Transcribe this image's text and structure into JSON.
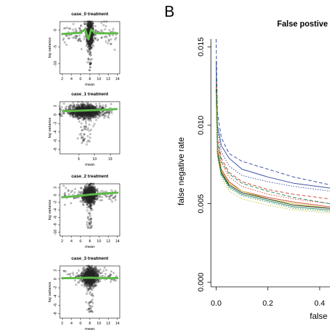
{
  "panel_b_letter": "B",
  "chart_data": [
    {
      "type": "scatter",
      "title": "case_0 treatment",
      "xlabel": "mean",
      "ylabel": "log variance",
      "xticks": [
        2,
        4,
        6,
        8,
        10,
        12,
        14
      ],
      "yticks": [
        0,
        -5,
        -10
      ],
      "xlim": [
        1.5,
        14.5
      ],
      "ylim": [
        -13,
        2.5
      ],
      "trend": {
        "x": [
          2,
          4,
          6,
          7,
          7.7,
          8.3,
          9,
          10,
          12,
          14
        ],
        "y": [
          -1.2,
          -1.0,
          -0.8,
          0.2,
          -2.8,
          0.2,
          -0.8,
          -1.0,
          -1.0,
          -1.0
        ]
      },
      "cloud": {
        "center_x": 8.0,
        "center_y": -1.2,
        "spread_x": 0.35,
        "spread_y": 3.0,
        "n_points": 900,
        "low_tail": -12
      },
      "trend_color": "#5dbb46",
      "point_color": "#222222"
    },
    {
      "type": "scatter",
      "title": "case_1 treatment",
      "xlabel": "mean",
      "ylabel": "log variance",
      "xticks": [
        5,
        10,
        15
      ],
      "yticks": [
        2,
        0,
        -2,
        -4,
        -6,
        -8
      ],
      "xlim": [
        -1,
        18
      ],
      "ylim": [
        -9,
        3
      ],
      "trend": {
        "x": [
          0,
          4,
          8,
          12,
          17
        ],
        "y": [
          0.8,
          0.9,
          1.0,
          1.1,
          1.3
        ]
      },
      "cloud": {
        "center_x": 7.0,
        "center_y": 0.8,
        "spread_x": 2.3,
        "spread_y": 1.2,
        "n_points": 1300,
        "low_tail": -7
      },
      "trend_color": "#5dbb46",
      "point_color": "#222222"
    },
    {
      "type": "scatter",
      "title": "case_2 treatment",
      "xlabel": "mean",
      "ylabel": "log variance",
      "xticks": [
        2,
        4,
        6,
        8,
        10,
        12,
        14
      ],
      "yticks": [
        2,
        0,
        -2,
        -4,
        -6,
        -8,
        -10
      ],
      "xlim": [
        1.5,
        14.5
      ],
      "ylim": [
        -11,
        3
      ],
      "trend": {
        "x": [
          2,
          4,
          6,
          8,
          10,
          12,
          14
        ],
        "y": [
          -0.6,
          -0.4,
          -0.2,
          0.1,
          0.3,
          0.5,
          0.6
        ]
      },
      "cloud": {
        "center_x": 8.0,
        "center_y": 0.0,
        "spread_x": 0.7,
        "spread_y": 1.8,
        "n_points": 1100,
        "low_tail": -9
      },
      "trend_color": "#5dbb46",
      "point_color": "#222222"
    },
    {
      "type": "scatter",
      "title": "case_3 treatment",
      "xlabel": "mean",
      "ylabel": "log variance",
      "xticks": [
        2,
        4,
        6,
        8,
        10,
        12,
        14
      ],
      "yticks": [
        2,
        0,
        -2,
        -4,
        -6,
        -8
      ],
      "xlim": [
        1.5,
        14.5
      ],
      "ylim": [
        -9,
        3
      ],
      "trend": {
        "x": [
          2,
          4,
          6,
          8,
          10,
          12,
          14
        ],
        "y": [
          0.2,
          0.2,
          0.25,
          0.3,
          0.25,
          0.2,
          0.2
        ]
      },
      "cloud": {
        "center_x": 8.0,
        "center_y": 0.5,
        "spread_x": 0.8,
        "spread_y": 1.6,
        "n_points": 1100,
        "low_tail": -8
      },
      "trend_color": "#5dbb46",
      "point_color": "#222222"
    },
    {
      "type": "line",
      "title": "False postive",
      "xlabel": "false",
      "ylabel": "false negative rate",
      "xticks": [
        "0.0",
        "0.2",
        "0.4"
      ],
      "yticks": [
        "0.000",
        "0.005",
        "0.010",
        "0.015"
      ],
      "xlim": [
        -0.02,
        0.44
      ],
      "ylim": [
        -0.0003,
        0.0155
      ],
      "series": [
        {
          "color": "#3a4fa0",
          "style": "dashed",
          "x": [
            0.0,
            0.005,
            0.02,
            0.05,
            0.1,
            0.2,
            0.3,
            0.44
          ],
          "y": [
            0.0155,
            0.0108,
            0.0092,
            0.0082,
            0.0077,
            0.0072,
            0.0067,
            0.0062
          ]
        },
        {
          "color": "#3a4fa0",
          "style": "solid",
          "x": [
            0.0,
            0.005,
            0.02,
            0.05,
            0.1,
            0.2,
            0.3,
            0.44
          ],
          "y": [
            0.0141,
            0.01,
            0.0087,
            0.0079,
            0.0072,
            0.0067,
            0.0063,
            0.006
          ]
        },
        {
          "color": "#3a4fa0",
          "style": "dotted",
          "x": [
            0.0,
            0.005,
            0.02,
            0.05,
            0.1,
            0.2,
            0.3,
            0.44
          ],
          "y": [
            0.0136,
            0.0097,
            0.0083,
            0.0074,
            0.0068,
            0.0064,
            0.0061,
            0.0058
          ]
        },
        {
          "color": "#d04a3c",
          "style": "dashed",
          "x": [
            0.0,
            0.005,
            0.02,
            0.05,
            0.1,
            0.2,
            0.3,
            0.44
          ],
          "y": [
            0.0129,
            0.0092,
            0.0079,
            0.007,
            0.0064,
            0.0059,
            0.0056,
            0.0053
          ]
        },
        {
          "color": "#d04a3c",
          "style": "dotted",
          "x": [
            0.0,
            0.005,
            0.02,
            0.05,
            0.1,
            0.2,
            0.3,
            0.44
          ],
          "y": [
            0.0126,
            0.0089,
            0.0076,
            0.0067,
            0.0061,
            0.0056,
            0.0053,
            0.005
          ]
        },
        {
          "color": "#2e8b57",
          "style": "dashed",
          "x": [
            0.0,
            0.005,
            0.02,
            0.05,
            0.1,
            0.2,
            0.3,
            0.44
          ],
          "y": [
            0.013,
            0.009,
            0.0077,
            0.0069,
            0.0063,
            0.0058,
            0.0054,
            0.005
          ]
        },
        {
          "color": "#d04a3c",
          "style": "solid",
          "x": [
            0.0,
            0.005,
            0.02,
            0.05,
            0.1,
            0.2,
            0.3,
            0.44
          ],
          "y": [
            0.0125,
            0.0086,
            0.0072,
            0.0064,
            0.0058,
            0.0054,
            0.0051,
            0.0048
          ]
        },
        {
          "color": "#c8c93a",
          "style": "solid",
          "x": [
            0.0,
            0.005,
            0.02,
            0.05,
            0.1,
            0.2,
            0.3,
            0.44
          ],
          "y": [
            0.0124,
            0.0085,
            0.0071,
            0.0063,
            0.0058,
            0.0053,
            0.005,
            0.0047
          ]
        },
        {
          "color": "#222222",
          "style": "solid",
          "x": [
            0.0,
            0.005,
            0.02,
            0.05,
            0.1,
            0.2,
            0.3,
            0.44
          ],
          "y": [
            0.0123,
            0.0083,
            0.007,
            0.0062,
            0.0057,
            0.0053,
            0.0049,
            0.0047
          ]
        },
        {
          "color": "#2e8b57",
          "style": "solid",
          "x": [
            0.0,
            0.005,
            0.02,
            0.05,
            0.1,
            0.2,
            0.3,
            0.44
          ],
          "y": [
            0.0122,
            0.0082,
            0.0069,
            0.0061,
            0.0056,
            0.0052,
            0.0048,
            0.0046
          ]
        },
        {
          "color": "#2e8b57",
          "style": "dotted",
          "x": [
            0.0,
            0.005,
            0.02,
            0.05,
            0.1,
            0.2,
            0.3,
            0.44
          ],
          "y": [
            0.0121,
            0.0081,
            0.0068,
            0.006,
            0.0055,
            0.0051,
            0.0047,
            0.0045
          ]
        },
        {
          "color": "#c8c93a",
          "style": "dotted",
          "x": [
            0.0,
            0.005,
            0.02,
            0.05,
            0.1,
            0.2,
            0.3,
            0.44
          ],
          "y": [
            0.012,
            0.008,
            0.0066,
            0.0058,
            0.0053,
            0.0049,
            0.0046,
            0.0044
          ]
        }
      ]
    }
  ]
}
